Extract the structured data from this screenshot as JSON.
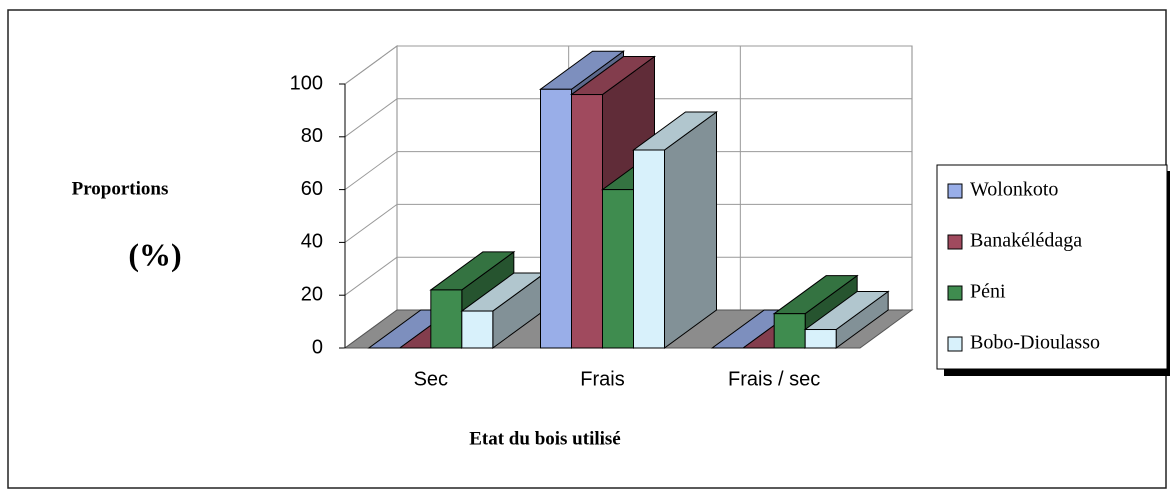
{
  "chart_data": {
    "type": "bar3d",
    "ylabel": "Proportions",
    "ylabel_unit": "(%)",
    "xlabel": "Etat du bois utilisé",
    "categories": [
      "Sec",
      "Frais",
      "Frais / sec"
    ],
    "series": [
      {
        "name": "Wolonkoto",
        "color": "#99aee8",
        "values": [
          0,
          98,
          0
        ]
      },
      {
        "name": "Banakélédaga",
        "color": "#a04a5e",
        "values": [
          0,
          96,
          0
        ]
      },
      {
        "name": "Péni",
        "color": "#3f8c4f",
        "values": [
          22,
          60,
          13
        ]
      },
      {
        "name": "Bobo-Dioulasso",
        "color": "#d8f1fb",
        "values": [
          14,
          75,
          7
        ]
      }
    ],
    "ylim": [
      0,
      100
    ],
    "yticks": [
      0,
      20,
      40,
      60,
      80,
      100
    ],
    "grid": true,
    "legend": "right"
  }
}
